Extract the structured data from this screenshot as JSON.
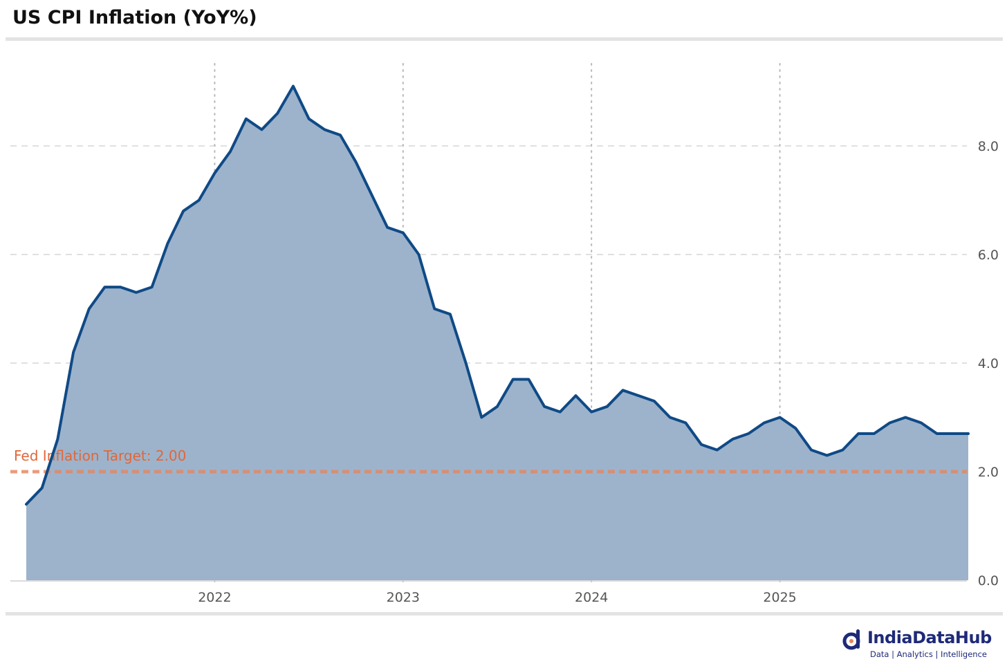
{
  "header": {
    "title": "US CPI Inflation (YoY%)"
  },
  "branding": {
    "name": "IndiaDataHub",
    "tagline": "Data | Analytics | Intelligence"
  },
  "colors": {
    "line": "#0f4a86",
    "fill": "#9db3cb",
    "target": "#e8845a",
    "target_label": "#e0673a",
    "text": "#555555"
  },
  "chart_data": {
    "type": "area",
    "title": "US CPI Inflation (YoY%)",
    "x_start": "2021-01",
    "x_frequency": "monthly",
    "x": [
      "2021-01",
      "2021-02",
      "2021-03",
      "2021-04",
      "2021-05",
      "2021-06",
      "2021-07",
      "2021-08",
      "2021-09",
      "2021-10",
      "2021-11",
      "2021-12",
      "2022-01",
      "2022-02",
      "2022-03",
      "2022-04",
      "2022-05",
      "2022-06",
      "2022-07",
      "2022-08",
      "2022-09",
      "2022-10",
      "2022-11",
      "2022-12",
      "2023-01",
      "2023-02",
      "2023-03",
      "2023-04",
      "2023-05",
      "2023-06",
      "2023-07",
      "2023-08",
      "2023-09",
      "2023-10",
      "2023-11",
      "2023-12",
      "2024-01",
      "2024-02",
      "2024-03",
      "2024-04",
      "2024-05",
      "2024-06",
      "2024-07",
      "2024-08",
      "2024-09",
      "2024-10",
      "2024-11",
      "2024-12",
      "2025-01",
      "2025-02",
      "2025-03",
      "2025-04",
      "2025-05",
      "2025-06",
      "2025-07",
      "2025-08",
      "2025-09",
      "2025-10",
      "2025-11",
      "2025-12",
      "2026-01"
    ],
    "series": [
      {
        "name": "US CPI YoY%",
        "values": [
          1.4,
          1.7,
          2.6,
          4.2,
          5.0,
          5.4,
          5.4,
          5.3,
          5.4,
          6.2,
          6.8,
          7.0,
          7.5,
          7.9,
          8.5,
          8.3,
          8.6,
          9.1,
          8.5,
          8.3,
          8.2,
          7.7,
          7.1,
          6.5,
          6.4,
          6.0,
          5.0,
          4.9,
          4.0,
          3.0,
          3.2,
          3.7,
          3.7,
          3.2,
          3.1,
          3.4,
          3.1,
          3.2,
          3.5,
          3.4,
          3.3,
          3.0,
          2.9,
          2.5,
          2.4,
          2.6,
          2.7,
          2.9,
          3.0,
          2.8,
          2.4,
          2.3,
          2.4,
          2.7,
          2.7,
          2.9,
          3.0,
          2.9,
          2.7,
          2.7,
          2.7
        ]
      }
    ],
    "x_ticks": [
      {
        "date": "2022-01",
        "label": "2022"
      },
      {
        "date": "2023-01",
        "label": "2023"
      },
      {
        "date": "2024-01",
        "label": "2024"
      },
      {
        "date": "2025-01",
        "label": "2025"
      }
    ],
    "y_ticks": [
      {
        "value": 0,
        "label": "0.0"
      },
      {
        "value": 2,
        "label": "2.0"
      },
      {
        "value": 4,
        "label": "4.0"
      },
      {
        "value": 6,
        "label": "6.0"
      },
      {
        "value": 8,
        "label": "8.0"
      }
    ],
    "ylim": [
      0,
      9.0
    ],
    "reference_line": {
      "value": 2.0,
      "label": "Fed Inflation Target: 2.00"
    },
    "grid": "on",
    "y_axis_side": "right",
    "xlabel": "",
    "ylabel": ""
  }
}
